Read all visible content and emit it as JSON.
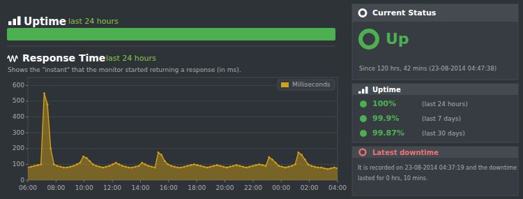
{
  "chart_data": {
    "type": "area",
    "title": "Response Time",
    "subtitle": "last 24 hours",
    "annotations": [
      "Shows the \"instant\" that the monitor started returning a response (in ms)."
    ],
    "x": [
      0,
      1,
      2,
      3,
      4,
      5,
      6,
      7,
      8,
      9,
      10,
      11,
      12,
      13,
      14,
      15,
      16,
      17,
      18,
      19,
      20,
      21,
      22,
      23,
      24,
      25,
      26,
      27,
      28,
      29,
      30,
      31,
      32,
      33,
      34,
      35,
      36,
      37,
      38,
      39,
      40,
      41,
      42,
      43,
      44,
      45,
      46,
      47,
      48,
      49,
      50,
      51,
      52,
      53,
      54,
      55,
      56,
      57,
      58,
      59,
      60,
      61,
      62,
      63,
      64,
      65,
      66,
      67,
      68,
      69,
      70,
      71,
      72,
      73,
      74,
      75,
      76,
      77,
      78,
      79,
      80,
      81,
      82,
      83,
      84,
      85,
      86,
      87,
      88,
      89,
      90,
      91,
      92,
      93,
      94,
      95
    ],
    "series": [
      {
        "name": "Milliseconds",
        "color": "#d4a017",
        "values": [
          80,
          85,
          90,
          95,
          100,
          550,
          480,
          200,
          100,
          90,
          85,
          80,
          80,
          85,
          90,
          100,
          110,
          150,
          140,
          120,
          100,
          90,
          85,
          80,
          85,
          90,
          100,
          110,
          100,
          90,
          85,
          80,
          80,
          85,
          90,
          110,
          100,
          90,
          85,
          80,
          175,
          160,
          120,
          100,
          90,
          85,
          80,
          80,
          85,
          90,
          95,
          100,
          95,
          90,
          85,
          80,
          85,
          90,
          95,
          90,
          85,
          80,
          85,
          90,
          95,
          90,
          85,
          80,
          85,
          90,
          95,
          100,
          95,
          90,
          145,
          130,
          110,
          90,
          85,
          80,
          85,
          90,
          100,
          175,
          160,
          130,
          100,
          90,
          85,
          80,
          80,
          75,
          70,
          75,
          80,
          75
        ]
      }
    ],
    "xlim": [
      0,
      95
    ],
    "xticks": [
      {
        "value": 0,
        "label": "06:00"
      },
      {
        "value": 8.636363636363637,
        "label": "08:00"
      },
      {
        "value": 17.272727272727273,
        "label": "10:00"
      },
      {
        "value": 25.90909090909091,
        "label": "12:00"
      },
      {
        "value": 34.54545454545455,
        "label": "14:00"
      },
      {
        "value": 43.18181818181818,
        "label": "16:00"
      },
      {
        "value": 51.81818181818182,
        "label": "18:00"
      },
      {
        "value": 60.45454545454545,
        "label": "20:00"
      },
      {
        "value": 69.0909090909091,
        "label": "22:00"
      },
      {
        "value": 77.72727272727273,
        "label": "00:00"
      },
      {
        "value": 86.36363636363636,
        "label": "02:00"
      },
      {
        "value": 95,
        "label": "04:00"
      }
    ],
    "ylim": [
      0,
      650
    ],
    "yticks": [
      0,
      100,
      200,
      300,
      400,
      500,
      600
    ],
    "grid": true,
    "legend": "upper right",
    "marker": "circle"
  },
  "uptime": {
    "title": "Uptime",
    "subtitle": "last 24 hours"
  },
  "current_status": {
    "title": "Current Status",
    "status": "Up",
    "since": "Since 120 hrs, 42 mins (23-08-2014 04:47:38)"
  },
  "uptime_stats": {
    "title": "Uptime",
    "rows": [
      {
        "value": "100%",
        "label": "(last 24 hours)"
      },
      {
        "value": "99.9%",
        "label": "(last 7 days)"
      },
      {
        "value": "99.87%",
        "label": "(last 30 days)"
      }
    ]
  },
  "latest_downtime": {
    "title": "Latest downtime",
    "text": "It is recorded on 23-08-2014 04:37:19 and the downtime\nlasted for 0 hrs, 10 mins."
  }
}
